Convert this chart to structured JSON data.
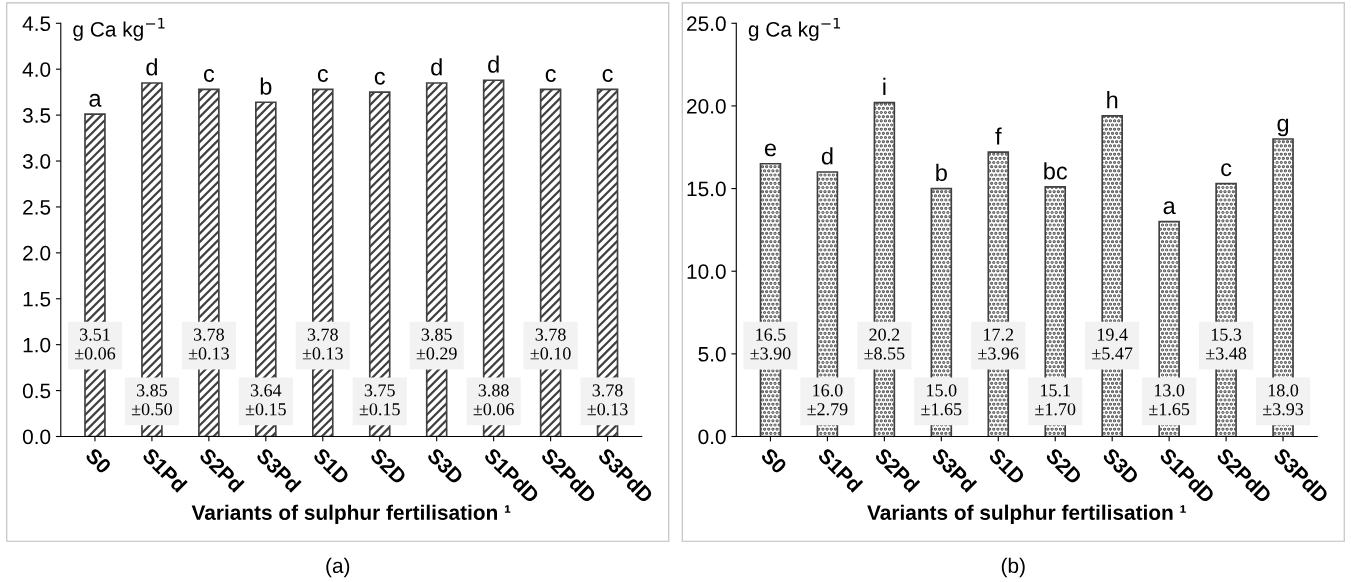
{
  "chart_data": [
    {
      "type": "bar",
      "xlabel": "Variants of sulphur fertilisation ¹",
      "ylabel": "g Ca kg$^{−1}$",
      "categories": [
        "S0",
        "S1Pd",
        "S2Pd",
        "S3Pd",
        "S1D",
        "S2D",
        "S3D",
        "S1PdD",
        "S2PdD",
        "S3PdD"
      ],
      "values": [
        3.51,
        3.85,
        3.78,
        3.64,
        3.78,
        3.75,
        3.85,
        3.88,
        3.78,
        3.78
      ],
      "value_labels": [
        "3.51\n±0.06",
        "3.85\n±0.50",
        "3.78\n±0.13",
        "3.64\n±0.15",
        "3.78\n±0.13",
        "3.75\n±0.15",
        "3.85\n±0.29",
        "3.88\n±0.06",
        "3.78\n±0.10",
        "3.78\n±0.13"
      ],
      "color": "#404040",
      "ylim": [
        0,
        4.5
      ],
      "yticks": [
        {
          "value": 0,
          "label": "0.0"
        },
        0.5,
        {
          "value": 1,
          "label": "1.0"
        },
        1.5,
        {
          "value": 2,
          "label": "2.0"
        },
        2.5,
        {
          "value": 3,
          "label": "3.0"
        },
        3.5,
        {
          "value": 4,
          "label": "4.0"
        },
        4.5
      ],
      "grid": false,
      "legend": false,
      "annotations": [
        {
          "text": "a",
          "x": "S0",
          "y": 3.51
        },
        {
          "text": "d",
          "x": "S1Pd",
          "y": 3.85
        },
        {
          "text": "c",
          "x": "S2Pd",
          "y": 3.78
        },
        {
          "text": "b",
          "x": "S3Pd",
          "y": 3.64
        },
        {
          "text": "c",
          "x": "S1D",
          "y": 3.78
        },
        {
          "text": "c",
          "x": "S2D",
          "y": 3.75
        },
        {
          "text": "d",
          "x": "S3D",
          "y": 3.85
        },
        {
          "text": "d",
          "x": "S1PdD",
          "y": 3.88
        },
        {
          "text": "c",
          "x": "S2PdD",
          "y": 3.78
        },
        {
          "text": "c",
          "x": "S3PdD",
          "y": 3.78
        },
        "(a)"
      ]
    },
    {
      "type": "bar",
      "xlabel": "Variants of sulphur fertilisation ¹",
      "ylabel": "g Ca kg$^{−1}$",
      "categories": [
        "S0",
        "S1Pd",
        "S2Pd",
        "S3Pd",
        "S1D",
        "S2D",
        "S3D",
        "S1PdD",
        "S2PdD",
        "S3PdD"
      ],
      "values": [
        16.5,
        16.0,
        20.2,
        15.0,
        17.2,
        15.1,
        19.4,
        13.0,
        15.3,
        18.0
      ],
      "value_labels": [
        "16.5\n±3.90",
        "16.0\n±2.79",
        "20.2\n±8.55",
        "15.0\n±1.65",
        "17.2\n±3.96",
        "15.1\n±1.70",
        "19.4\n±5.47",
        "13.0\n±1.65",
        "15.3\n±3.48",
        "18.0\n±3.93"
      ],
      "color": "#404040",
      "ylim": [
        0,
        25
      ],
      "yticks": [
        {
          "value": 0,
          "label": "0.0"
        },
        {
          "value": 5,
          "label": "5.0"
        },
        {
          "value": 10,
          "label": "10.0"
        },
        {
          "value": 15,
          "label": "15.0"
        },
        {
          "value": 20,
          "label": "20.0"
        },
        {
          "value": 25,
          "label": "25.0"
        }
      ],
      "grid": false,
      "legend": false,
      "annotations": [
        {
          "text": "e",
          "x": "S0",
          "y": 16.5
        },
        {
          "text": "d",
          "x": "S1Pd",
          "y": 16.0
        },
        {
          "text": "i",
          "x": "S2Pd",
          "y": 20.2
        },
        {
          "text": "b",
          "x": "S3Pd",
          "y": 15.0
        },
        {
          "text": "f",
          "x": "S1D",
          "y": 17.2
        },
        {
          "text": "bc",
          "x": "S2D",
          "y": 15.1
        },
        {
          "text": "h",
          "x": "S3D",
          "y": 19.4
        },
        {
          "text": "a",
          "x": "S1PdD",
          "y": 13.0
        },
        {
          "text": "c",
          "x": "S2PdD",
          "y": 15.3
        },
        {
          "text": "g",
          "x": "S3PdD",
          "y": 18.0
        },
        "(b)"
      ]
    }
  ]
}
